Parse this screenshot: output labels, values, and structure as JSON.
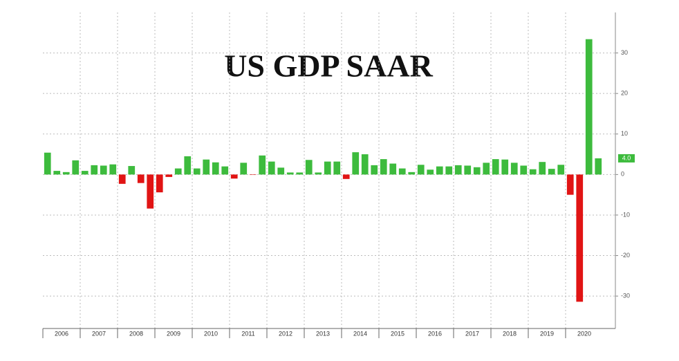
{
  "chart_data": {
    "type": "bar",
    "title": "US GDP SAAR",
    "years": [
      "2006",
      "2007",
      "2008",
      "2009",
      "2010",
      "2011",
      "2012",
      "2013",
      "2014",
      "2015",
      "2016",
      "2017",
      "2018",
      "2019",
      "2020"
    ],
    "values": [
      5.4,
      0.9,
      0.6,
      3.5,
      0.9,
      2.3,
      2.2,
      2.5,
      -2.3,
      2.1,
      -2.1,
      -8.4,
      -4.4,
      -0.6,
      1.5,
      4.5,
      1.5,
      3.7,
      3.0,
      2.0,
      -1.0,
      2.9,
      -0.1,
      4.7,
      3.2,
      1.7,
      0.5,
      0.5,
      3.6,
      0.5,
      3.2,
      3.2,
      -1.1,
      5.5,
      5.0,
      2.3,
      3.8,
      2.7,
      1.5,
      0.6,
      2.4,
      1.2,
      2.0,
      2.0,
      2.3,
      2.2,
      1.8,
      2.9,
      3.8,
      3.7,
      2.9,
      2.2,
      1.3,
      3.1,
      1.4,
      2.4,
      -5.0,
      -31.4,
      33.4,
      4.0
    ],
    "positive_color": "#3dbb3d",
    "negative_color": "#e11414",
    "last_value_label": "4.0",
    "ylim": [
      -38,
      40
    ],
    "yticks": [
      -30,
      -20,
      -10,
      0,
      10,
      20,
      30
    ],
    "grid": true
  }
}
